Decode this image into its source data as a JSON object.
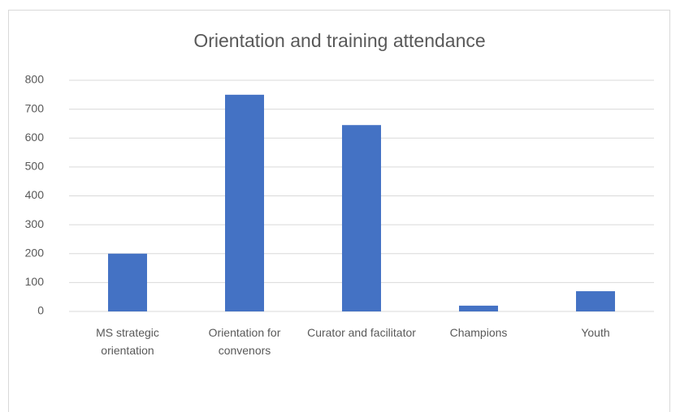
{
  "chart_data": {
    "type": "bar",
    "title": "Orientation and training attendance",
    "categories": [
      "MS strategic orientation",
      "Orientation for convenors",
      "Curator and facilitator",
      "Champions",
      "Youth"
    ],
    "values": [
      200,
      750,
      645,
      20,
      70
    ],
    "color": "#4472c4",
    "ylim": [
      0,
      800
    ],
    "yticks": [
      0,
      100,
      200,
      300,
      400,
      500,
      600,
      700,
      800
    ],
    "grid": true
  }
}
